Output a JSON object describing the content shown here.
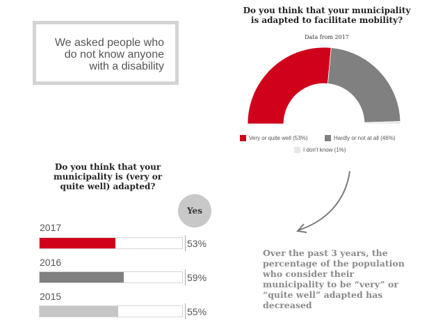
{
  "intro": {
    "lines": [
      "We asked people who",
      "do not know anyone",
      "with a disability"
    ]
  },
  "chart_data": [
    {
      "type": "pie",
      "variant": "half-donut",
      "title_lines": [
        "Do you think that your municipality",
        "is adapted to facilitate mobility?"
      ],
      "subtitle": "Data from 2017",
      "slices": [
        {
          "label": "Very or quite well (53%)",
          "value": 53,
          "color": "#d0021b"
        },
        {
          "label": "Hardly or not at all (46%)",
          "value": 46,
          "color": "#808080"
        },
        {
          "label": "I don't know (1%)",
          "value": 1,
          "color": "#e6e6e6"
        }
      ],
      "legend_position": "bottom"
    },
    {
      "type": "bar",
      "orientation": "horizontal",
      "title_lines": [
        "Do you think that your",
        "municipality is (very or",
        "quite well) adapted?"
      ],
      "column_header": "Yes",
      "categories": [
        "2017",
        "2016",
        "2015"
      ],
      "values": [
        53,
        59,
        55
      ],
      "value_labels": [
        "53%",
        "59%",
        "55%"
      ],
      "colors": [
        "#d0021b",
        "#808080",
        "#c6c6c6"
      ],
      "xlim": [
        0,
        100
      ]
    }
  ],
  "note": {
    "lines": [
      "Over the past 3 years, the",
      "percentage of the population",
      "who consider their",
      "municipality to be “very” or",
      "“quite well” adapted has",
      "decreased"
    ]
  }
}
